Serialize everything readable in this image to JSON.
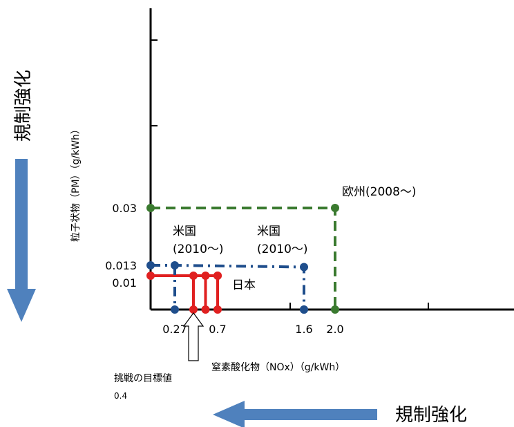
{
  "chart_data": {
    "type": "line",
    "xlabel": "窒素酸化物（NOx）（g/kWh）",
    "ylabel": "粒子状物（PM）（g/kWh）",
    "x_ticks": [
      {
        "value": 0.27,
        "label": "0.27"
      },
      {
        "value": 0.7,
        "label": "0.7"
      },
      {
        "value": 1.6,
        "label": "1.6"
      },
      {
        "value": 2.0,
        "label": "2.0"
      }
    ],
    "y_ticks": [
      {
        "value": 0.01,
        "label": "0.01"
      },
      {
        "value": 0.013,
        "label": "0.013"
      },
      {
        "value": 0.03,
        "label": "0.03"
      }
    ],
    "series": [
      {
        "name": "欧州(2008〜)",
        "color": "#3a7a2f",
        "style": "dashed",
        "points": [
          [
            0,
            0.03
          ],
          [
            2.0,
            0.03
          ],
          [
            2.0,
            0
          ]
        ]
      },
      {
        "name": "米国(2010〜)",
        "color": "#1f4e8c",
        "style": "dashdot",
        "points": [
          [
            0,
            0.013
          ],
          [
            0.27,
            0.013
          ],
          [
            1.6,
            0.0125
          ],
          [
            1.6,
            0
          ]
        ]
      },
      {
        "name": "日本",
        "color": "#e02020",
        "style": "solid",
        "points": [
          [
            0,
            0.01
          ],
          [
            0.7,
            0.01
          ]
        ],
        "verticals": [
          0.4,
          0.55,
          0.7
        ]
      }
    ],
    "annotations": {
      "us_label_1": "米国\n(2010〜)",
      "us_label_1_line1": "米国",
      "us_label_1_line2": "(2010〜)",
      "us_label_2_line1": "米国",
      "us_label_2_line2": "(2010〜)",
      "eu_label": "欧州(2008〜)",
      "jp_label": "日本",
      "goal_label": "挑戦の目標値",
      "goal_value": "0.4",
      "regulation_label": "規制強化"
    }
  },
  "colors": {
    "arrow": "#4f81bd",
    "eu": "#3a7a2f",
    "us": "#1f4e8c",
    "jp": "#e02020"
  }
}
